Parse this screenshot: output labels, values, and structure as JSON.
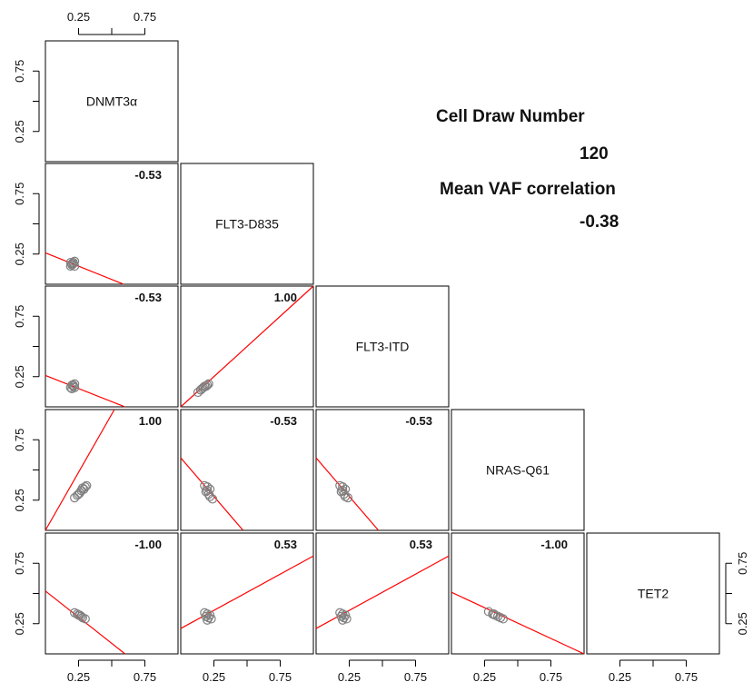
{
  "chart_data": {
    "type": "scatter",
    "variables": [
      "DNMT3α",
      "FLT3-D835",
      "FLT3-ITD",
      "NRAS-Q61",
      "TET2"
    ],
    "xlim": [
      0,
      1
    ],
    "ylim": [
      0,
      1
    ],
    "tick_labels": [
      "0.25",
      "0.75"
    ],
    "tick_values": [
      0.25,
      0.5,
      0.75
    ],
    "panels": [
      {
        "row": 1,
        "col": 0,
        "corr": "-0.53",
        "points": [
          [
            0.22,
            0.19
          ],
          [
            0.19,
            0.18
          ],
          [
            0.21,
            0.17
          ],
          [
            0.2,
            0.16
          ],
          [
            0.22,
            0.15
          ],
          [
            0.19,
            0.15
          ],
          [
            0.21,
            0.18
          ],
          [
            0.2,
            0.17
          ]
        ],
        "line": [
          [
            0,
            0.26
          ],
          [
            0.59,
            0
          ]
        ]
      },
      {
        "row": 2,
        "col": 0,
        "corr": "-0.53",
        "points": [
          [
            0.22,
            0.19
          ],
          [
            0.2,
            0.18
          ],
          [
            0.21,
            0.17
          ],
          [
            0.19,
            0.16
          ],
          [
            0.22,
            0.16
          ],
          [
            0.2,
            0.15
          ],
          [
            0.21,
            0.18
          ]
        ],
        "line": [
          [
            0,
            0.26
          ],
          [
            0.6,
            0
          ]
        ]
      },
      {
        "row": 2,
        "col": 1,
        "corr": "1.00",
        "points": [
          [
            0.13,
            0.12
          ],
          [
            0.15,
            0.14
          ],
          [
            0.17,
            0.16
          ],
          [
            0.19,
            0.17
          ],
          [
            0.2,
            0.18
          ],
          [
            0.21,
            0.19
          ],
          [
            0.18,
            0.17
          ],
          [
            0.16,
            0.15
          ]
        ],
        "line": [
          [
            0,
            0
          ],
          [
            1,
            1
          ]
        ]
      },
      {
        "row": 3,
        "col": 0,
        "corr": "1.00",
        "points": [
          [
            0.22,
            0.27
          ],
          [
            0.24,
            0.29
          ],
          [
            0.26,
            0.31
          ],
          [
            0.27,
            0.33
          ],
          [
            0.28,
            0.35
          ],
          [
            0.3,
            0.36
          ],
          [
            0.31,
            0.37
          ],
          [
            0.25,
            0.3
          ],
          [
            0.29,
            0.34
          ]
        ],
        "line": [
          [
            0,
            0
          ],
          [
            0.52,
            1
          ]
        ]
      },
      {
        "row": 3,
        "col": 1,
        "corr": "-0.53",
        "points": [
          [
            0.18,
            0.37
          ],
          [
            0.2,
            0.36
          ],
          [
            0.22,
            0.34
          ],
          [
            0.19,
            0.32
          ],
          [
            0.21,
            0.3
          ],
          [
            0.22,
            0.28
          ],
          [
            0.24,
            0.26
          ],
          [
            0.2,
            0.33
          ]
        ],
        "line": [
          [
            0,
            0.6
          ],
          [
            0.47,
            0
          ]
        ]
      },
      {
        "row": 3,
        "col": 2,
        "corr": "-0.53",
        "points": [
          [
            0.18,
            0.37
          ],
          [
            0.2,
            0.36
          ],
          [
            0.22,
            0.34
          ],
          [
            0.19,
            0.32
          ],
          [
            0.21,
            0.3
          ],
          [
            0.22,
            0.28
          ],
          [
            0.24,
            0.27
          ],
          [
            0.2,
            0.33
          ]
        ],
        "line": [
          [
            0,
            0.6
          ],
          [
            0.47,
            0
          ]
        ]
      },
      {
        "row": 4,
        "col": 0,
        "corr": "-1.00",
        "points": [
          [
            0.22,
            0.34
          ],
          [
            0.24,
            0.33
          ],
          [
            0.26,
            0.32
          ],
          [
            0.27,
            0.31
          ],
          [
            0.28,
            0.3
          ],
          [
            0.3,
            0.29
          ],
          [
            0.25,
            0.32
          ]
        ],
        "line": [
          [
            0,
            0.52
          ],
          [
            0.6,
            0
          ]
        ]
      },
      {
        "row": 4,
        "col": 1,
        "corr": "0.53",
        "points": [
          [
            0.18,
            0.34
          ],
          [
            0.2,
            0.33
          ],
          [
            0.22,
            0.32
          ],
          [
            0.19,
            0.31
          ],
          [
            0.21,
            0.3
          ],
          [
            0.23,
            0.29
          ],
          [
            0.2,
            0.28
          ]
        ],
        "line": [
          [
            0,
            0.21
          ],
          [
            1,
            0.81
          ]
        ]
      },
      {
        "row": 4,
        "col": 2,
        "corr": "0.53",
        "points": [
          [
            0.18,
            0.34
          ],
          [
            0.2,
            0.33
          ],
          [
            0.22,
            0.32
          ],
          [
            0.19,
            0.31
          ],
          [
            0.21,
            0.3
          ],
          [
            0.23,
            0.29
          ],
          [
            0.2,
            0.28
          ]
        ],
        "line": [
          [
            0,
            0.21
          ],
          [
            1,
            0.81
          ]
        ]
      },
      {
        "row": 4,
        "col": 3,
        "corr": "-1.00",
        "points": [
          [
            0.28,
            0.35
          ],
          [
            0.31,
            0.33
          ],
          [
            0.33,
            0.32
          ],
          [
            0.35,
            0.31
          ],
          [
            0.37,
            0.3
          ],
          [
            0.39,
            0.29
          ],
          [
            0.32,
            0.33
          ]
        ],
        "line": [
          [
            0,
            0.51
          ],
          [
            1,
            0
          ]
        ]
      }
    ]
  },
  "info": {
    "title": "Cell Draw Number",
    "draw_number": "120",
    "corr_label": "Mean VAF correlation",
    "corr_value": "-0.38"
  },
  "colors": {
    "line": "#ff0000",
    "points": "#808080",
    "axis": "#000000"
  }
}
